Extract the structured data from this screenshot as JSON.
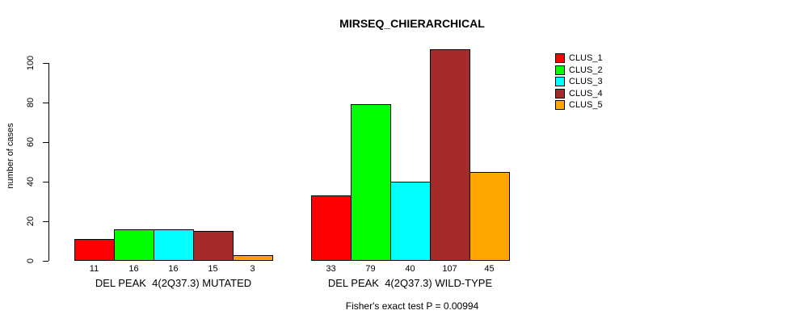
{
  "title": "MIRSEQ_CHIERARCHICAL",
  "annotation": "Fisher's exact test P = 0.00994",
  "chart_data": {
    "type": "bar",
    "title": "MIRSEQ_CHIERARCHICAL",
    "xlabel": "",
    "ylabel": "number of cases",
    "ylim": [
      0,
      100
    ],
    "yticks": [
      0,
      20,
      40,
      60,
      80,
      100
    ],
    "grid": false,
    "legend_position": "top-right-inside",
    "background": "#ffffff",
    "bar_border_color": "#000000",
    "categories": [
      "DEL PEAK  4(2Q37.3) MUTATED",
      "DEL PEAK  4(2Q37.3) WILD-TYPE"
    ],
    "series": [
      {
        "name": "CLUS_1",
        "color": "#FF0000",
        "values": [
          11,
          33
        ]
      },
      {
        "name": "CLUS_2",
        "color": "#00FF00",
        "values": [
          16,
          79
        ]
      },
      {
        "name": "CLUS_3",
        "color": "#00FFFF",
        "values": [
          16,
          40
        ]
      },
      {
        "name": "CLUS_4",
        "color": "#A52A2A",
        "values": [
          15,
          107
        ]
      },
      {
        "name": "CLUS_5",
        "color": "#FFA500",
        "values": [
          3,
          45
        ]
      }
    ],
    "bar_value_labels": true,
    "annotation": "Fisher's exact test P = 0.00994"
  }
}
